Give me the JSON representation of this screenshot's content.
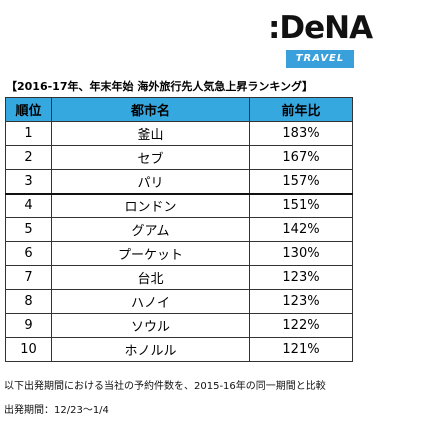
{
  "logo": {
    "wordmark": ":DeNA",
    "badge": "TRAVEL"
  },
  "heading": "【2016-17年、年末年始 海外旅行先人気急上昇ランキング】",
  "table": {
    "headers": {
      "rank": "順位",
      "city": "都市名",
      "ratio": "前年比"
    },
    "header_color": "#36a8e0",
    "rows": [
      {
        "rank": "1",
        "city": "釜山",
        "ratio": "183%"
      },
      {
        "rank": "2",
        "city": "セブ",
        "ratio": "167%"
      },
      {
        "rank": "3",
        "city": "パリ",
        "ratio": "157%"
      },
      {
        "rank": "4",
        "city": "ロンドン",
        "ratio": "151%"
      },
      {
        "rank": "5",
        "city": "グアム",
        "ratio": "142%"
      },
      {
        "rank": "6",
        "city": "プーケット",
        "ratio": "130%"
      },
      {
        "rank": "7",
        "city": "台北",
        "ratio": "123%"
      },
      {
        "rank": "8",
        "city": "ハノイ",
        "ratio": "123%"
      },
      {
        "rank": "9",
        "city": "ソウル",
        "ratio": "122%"
      },
      {
        "rank": "10",
        "city": "ホノルル",
        "ratio": "121%"
      }
    ]
  },
  "notes": {
    "line1": "以下出発期間における当社の予約件数を、2015-16年の同一期間と比較",
    "line2": "出発期間：12/23〜1/4"
  }
}
